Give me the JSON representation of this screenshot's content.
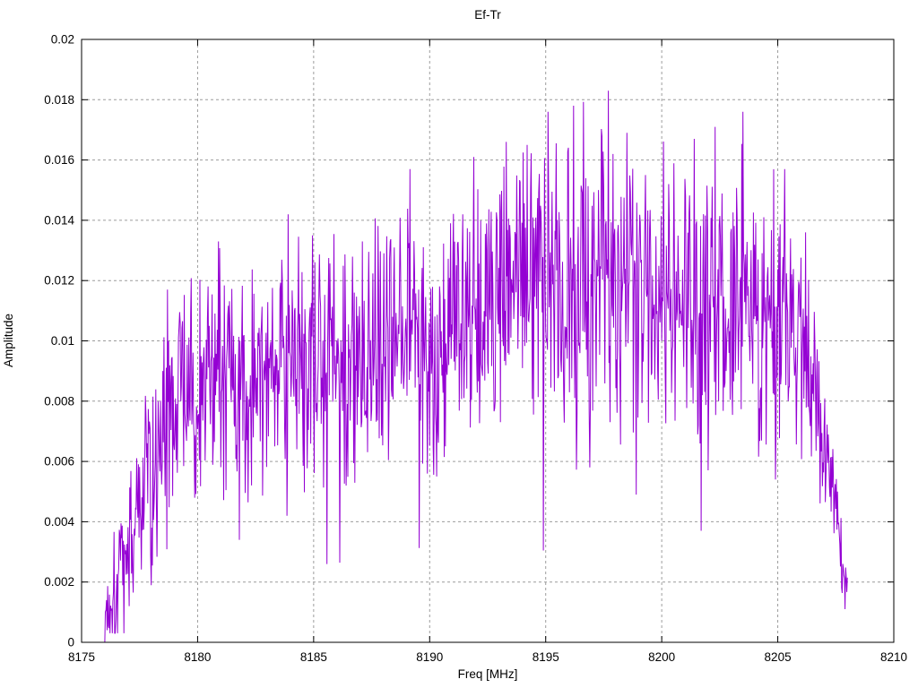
{
  "chart_data": {
    "type": "line",
    "title": "Ef-Tr",
    "xlabel": "Freq [MHz]",
    "ylabel": "Amplitude",
    "xlim": [
      8175,
      8210
    ],
    "ylim": [
      0,
      0.02
    ],
    "grid": {
      "visible": true,
      "style": "dashed",
      "color": "#9c9c9c"
    },
    "legend_position": "none",
    "style": {
      "line_color": "#9400D3",
      "background": "#ffffff",
      "border_color": "#000000",
      "text_color": "#000000"
    },
    "xticks": {
      "values": [
        8175,
        8180,
        8185,
        8190,
        8195,
        8200,
        8205,
        8210
      ],
      "labels": [
        "8175",
        "8180",
        "8185",
        "8190",
        "8195",
        "8200",
        "8205",
        "8210"
      ]
    },
    "yticks": {
      "values": [
        0,
        0.002,
        0.004,
        0.006,
        0.008,
        0.01,
        0.012,
        0.014,
        0.016,
        0.018,
        0.02
      ],
      "labels": [
        "0",
        "0.002",
        "0.004",
        "0.006",
        "0.008",
        "0.01",
        "0.012",
        "0.014",
        "0.016",
        "0.018",
        "0.02"
      ]
    },
    "series": [
      {
        "name": "Ef-Tr",
        "signal_range": [
          8176.0,
          8208.0
        ],
        "max_point": {
          "x": 8197.7,
          "y": 0.0183
        },
        "envelope_mean": [
          [
            8176.0,
            0.0008
          ],
          [
            8176.3,
            0.0015
          ],
          [
            8176.8,
            0.0025
          ],
          [
            8177.3,
            0.004
          ],
          [
            8178.0,
            0.006
          ],
          [
            8178.6,
            0.0075
          ],
          [
            8179.2,
            0.008
          ],
          [
            8180.0,
            0.0085
          ],
          [
            8181.0,
            0.009
          ],
          [
            8181.8,
            0.008
          ],
          [
            8182.5,
            0.0088
          ],
          [
            8183.5,
            0.0092
          ],
          [
            8184.2,
            0.0098
          ],
          [
            8185.0,
            0.009
          ],
          [
            8186.0,
            0.0093
          ],
          [
            8187.0,
            0.0095
          ],
          [
            8188.0,
            0.0098
          ],
          [
            8189.0,
            0.0105
          ],
          [
            8190.0,
            0.0092
          ],
          [
            8190.8,
            0.0102
          ],
          [
            8191.5,
            0.0108
          ],
          [
            8192.5,
            0.011
          ],
          [
            8193.5,
            0.0113
          ],
          [
            8194.5,
            0.0117
          ],
          [
            8195.5,
            0.012
          ],
          [
            8196.5,
            0.012
          ],
          [
            8197.5,
            0.0122
          ],
          [
            8198.5,
            0.0118
          ],
          [
            8199.5,
            0.0115
          ],
          [
            8200.5,
            0.0113
          ],
          [
            8201.5,
            0.011
          ],
          [
            8202.5,
            0.0112
          ],
          [
            8203.5,
            0.0113
          ],
          [
            8204.5,
            0.011
          ],
          [
            8205.3,
            0.0108
          ],
          [
            8206.0,
            0.0098
          ],
          [
            8206.6,
            0.0088
          ],
          [
            8207.0,
            0.0068
          ],
          [
            8207.4,
            0.0045
          ],
          [
            8207.8,
            0.0025
          ],
          [
            8208.0,
            0.0013
          ]
        ],
        "noise_spread": [
          [
            8176,
            0.001
          ],
          [
            8177,
            0.0015
          ],
          [
            8178,
            0.002
          ],
          [
            8180,
            0.0022
          ],
          [
            8185,
            0.0022
          ],
          [
            8190,
            0.0024
          ],
          [
            8195,
            0.0026
          ],
          [
            8200,
            0.0026
          ],
          [
            8204,
            0.0024
          ],
          [
            8206,
            0.002
          ],
          [
            8207,
            0.0015
          ],
          [
            8208,
            0.0007
          ]
        ],
        "peak_magnitude": [
          [
            8176,
            0.0015
          ],
          [
            8179,
            0.003
          ],
          [
            8183,
            0.0042
          ],
          [
            8186,
            0.0038
          ],
          [
            8189,
            0.005
          ],
          [
            8191,
            0.0045
          ],
          [
            8193,
            0.0052
          ],
          [
            8195,
            0.0058
          ],
          [
            8198,
            0.006
          ],
          [
            8200,
            0.0055
          ],
          [
            8202,
            0.0058
          ],
          [
            8204,
            0.0055
          ],
          [
            8205.5,
            0.0045
          ],
          [
            8206.5,
            0.003
          ],
          [
            8207.5,
            0.0012
          ],
          [
            8208,
            0.0008
          ]
        ],
        "notable_peaks": [
          {
            "x": 8178.7,
            "y": 0.0117
          },
          {
            "x": 8180.9,
            "y": 0.0133
          },
          {
            "x": 8183.9,
            "y": 0.0142
          },
          {
            "x": 8184.95,
            "y": 0.0135
          },
          {
            "x": 8187.1,
            "y": 0.0133
          },
          {
            "x": 8189.15,
            "y": 0.0157
          },
          {
            "x": 8190.9,
            "y": 0.0139
          },
          {
            "x": 8191.9,
            "y": 0.0161
          },
          {
            "x": 8193.3,
            "y": 0.0166
          },
          {
            "x": 8194.2,
            "y": 0.0165
          },
          {
            "x": 8195.1,
            "y": 0.0176
          },
          {
            "x": 8196.2,
            "y": 0.0178
          },
          {
            "x": 8197.7,
            "y": 0.0183
          },
          {
            "x": 8198.5,
            "y": 0.0169
          },
          {
            "x": 8199.3,
            "y": 0.0155
          },
          {
            "x": 8200.3,
            "y": 0.0152
          },
          {
            "x": 8201.4,
            "y": 0.0167
          },
          {
            "x": 8202.3,
            "y": 0.0171
          },
          {
            "x": 8203.5,
            "y": 0.0176
          },
          {
            "x": 8204.4,
            "y": 0.0141
          },
          {
            "x": 8205.3,
            "y": 0.0157
          },
          {
            "x": 8206.2,
            "y": 0.0136
          }
        ],
        "notable_dips": [
          {
            "x": 8176.1,
            "y": 0.0004
          },
          {
            "x": 8181.8,
            "y": 0.0034
          },
          {
            "x": 8183.85,
            "y": 0.0042
          },
          {
            "x": 8186.4,
            "y": 0.0052
          },
          {
            "x": 8189.9,
            "y": 0.0056
          },
          {
            "x": 8190.3,
            "y": 0.0055
          },
          {
            "x": 8196.9,
            "y": 0.0058
          },
          {
            "x": 8198.9,
            "y": 0.0049
          },
          {
            "x": 8201.7,
            "y": 0.0037
          },
          {
            "x": 8204.9,
            "y": 0.0054
          },
          {
            "x": 8207.9,
            "y": 0.0011
          }
        ],
        "generator": {
          "seed": 1337,
          "step": 0.025,
          "peak_prob": 0.05,
          "dip_prob": 0.025
        }
      }
    ]
  }
}
